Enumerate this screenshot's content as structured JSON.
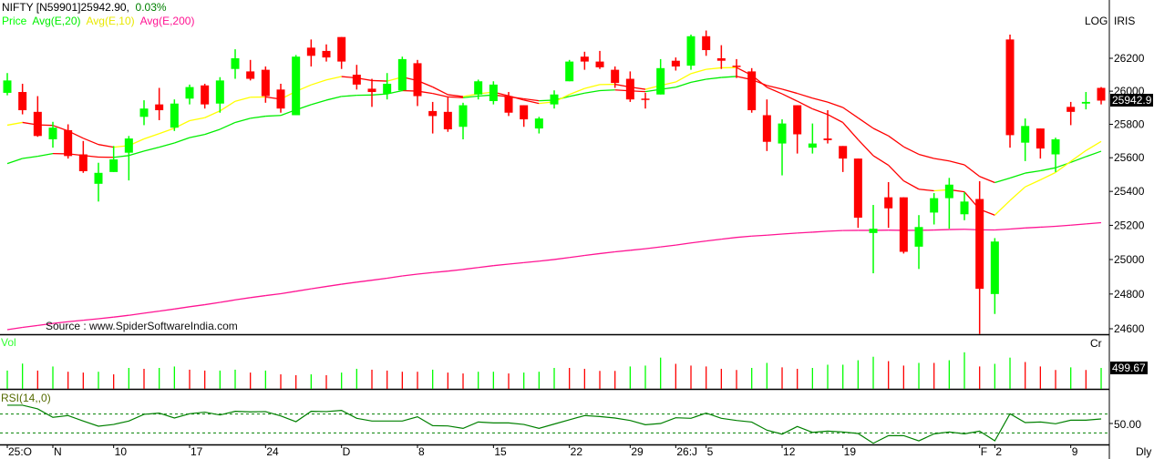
{
  "header": {
    "symbol": "NIFTY [N59901]",
    "price": "25942.90,",
    "change": "0.03%"
  },
  "legend": {
    "price": "Price",
    "ema20": "Avg(E,20)",
    "ema10": "Avg(E,10)",
    "ema200": "Avg(E,200)"
  },
  "top_right": {
    "log": "LOG",
    "iris": "IRIS"
  },
  "source": "Source : www.SpiderSoftwareIndia.com",
  "volume_panel": {
    "title": "Vol",
    "unit": "Cr",
    "last_label": "499.67"
  },
  "rsi_panel": {
    "title": "RSI(14,,0)",
    "mid_label": "50.00"
  },
  "period": "Dly",
  "last_price_label": "25942.9",
  "colors": {
    "up": "#00ff00",
    "down": "#ff0000",
    "ema20_up": "#00ee00",
    "ema10_up": "#ffff00",
    "ema_down": "#ff0000",
    "ema200": "#ff1493",
    "rsi": "#008000",
    "change": "#008000"
  },
  "chart_data": {
    "type": "candlestick",
    "scale": "log",
    "ylim": [
      24560,
      26380
    ],
    "y_ticks": [
      "26200",
      "26000",
      "25800",
      "25600",
      "25400",
      "25200",
      "25000",
      "24800",
      "24600"
    ],
    "x_ticks": [
      {
        "label": "25:O",
        "index": 0
      },
      {
        "label": "N",
        "index": 3
      },
      {
        "label": "10",
        "index": 7
      },
      {
        "label": "17",
        "index": 12
      },
      {
        "label": "24",
        "index": 17
      },
      {
        "label": "D",
        "index": 22
      },
      {
        "label": "8",
        "index": 27
      },
      {
        "label": "15",
        "index": 32
      },
      {
        "label": "22",
        "index": 37
      },
      {
        "label": "29",
        "index": 41
      },
      {
        "label": "26:J",
        "index": 44
      },
      {
        "label": "5",
        "index": 46
      },
      {
        "label": "12",
        "index": 51
      },
      {
        "label": "19",
        "index": 55
      },
      {
        "label": "F",
        "index": 64
      },
      {
        "label": "2",
        "index": 65
      },
      {
        "label": "9",
        "index": 70
      }
    ],
    "ohlc": [
      [
        25990,
        26110,
        25975,
        26065
      ],
      [
        25995,
        26045,
        25860,
        25885
      ],
      [
        25875,
        25970,
        25725,
        25730
      ],
      [
        25710,
        25815,
        25660,
        25780
      ],
      [
        25765,
        25800,
        25595,
        25610
      ],
      [
        25620,
        25700,
        25510,
        25520
      ],
      [
        25445,
        25570,
        25340,
        25510
      ],
      [
        25515,
        25670,
        25515,
        25590
      ],
      [
        25630,
        25730,
        25465,
        25715
      ],
      [
        25845,
        25945,
        25795,
        25895
      ],
      [
        25920,
        26020,
        25825,
        25885
      ],
      [
        25780,
        25950,
        25760,
        25925
      ],
      [
        25955,
        26040,
        25920,
        26025
      ],
      [
        26035,
        26045,
        25895,
        25920
      ],
      [
        25925,
        26085,
        25870,
        26065
      ],
      [
        26135,
        26255,
        26075,
        26200
      ],
      [
        26120,
        26190,
        26065,
        26075
      ],
      [
        26130,
        26150,
        25930,
        25970
      ],
      [
        26010,
        26045,
        25870,
        25895
      ],
      [
        25855,
        26220,
        25855,
        26210
      ],
      [
        26265,
        26315,
        26150,
        26215
      ],
      [
        26245,
        26285,
        26180,
        26205
      ],
      [
        26330,
        26330,
        26135,
        26180
      ],
      [
        26100,
        26160,
        26010,
        26040
      ],
      [
        26015,
        26075,
        25905,
        25995
      ],
      [
        25985,
        26110,
        25950,
        26045
      ],
      [
        26005,
        26210,
        26000,
        26195
      ],
      [
        26170,
        26190,
        25910,
        25970
      ],
      [
        25880,
        25935,
        25745,
        25850
      ],
      [
        25875,
        25965,
        25755,
        25770
      ],
      [
        25785,
        25930,
        25710,
        25915
      ],
      [
        25980,
        26070,
        25950,
        26060
      ],
      [
        25940,
        26060,
        25920,
        26040
      ],
      [
        25970,
        25995,
        25850,
        25870
      ],
      [
        25915,
        25915,
        25785,
        25830
      ],
      [
        25775,
        25845,
        25745,
        25835
      ],
      [
        25920,
        26005,
        25895,
        25980
      ],
      [
        26060,
        26190,
        26060,
        26180
      ],
      [
        26210,
        26240,
        26130,
        26180
      ],
      [
        26180,
        26245,
        26135,
        26145
      ],
      [
        26130,
        26150,
        26020,
        26050
      ],
      [
        26075,
        26120,
        25935,
        25950
      ],
      [
        25955,
        25990,
        25895,
        25950
      ],
      [
        25980,
        26195,
        25980,
        26140
      ],
      [
        26185,
        26205,
        26125,
        26150
      ],
      [
        26155,
        26345,
        26130,
        26335
      ],
      [
        26335,
        26370,
        26215,
        26250
      ],
      [
        26200,
        26280,
        26135,
        26185
      ],
      [
        26155,
        26195,
        26080,
        26150
      ],
      [
        26120,
        26140,
        25870,
        25885
      ],
      [
        25855,
        25950,
        25640,
        25695
      ],
      [
        25685,
        25830,
        25495,
        25805
      ],
      [
        25915,
        25915,
        25625,
        25740
      ],
      [
        25660,
        25805,
        25625,
        25685
      ],
      [
        25715,
        25885,
        25685,
        25705
      ],
      [
        25670,
        25670,
        25515,
        25595
      ],
      [
        25595,
        25595,
        25185,
        25245
      ],
      [
        25155,
        25320,
        24920,
        25180
      ],
      [
        25365,
        25455,
        25185,
        25300
      ],
      [
        25365,
        25365,
        25035,
        25045
      ],
      [
        25075,
        25260,
        24945,
        25190
      ],
      [
        25275,
        25390,
        25205,
        25360
      ],
      [
        25360,
        25480,
        25180,
        25440
      ],
      [
        25265,
        25395,
        25230,
        25340
      ],
      [
        25355,
        25460,
        24570,
        24830
      ],
      [
        24800,
        25125,
        24685,
        25105
      ],
      [
        26315,
        26345,
        25660,
        25735
      ],
      [
        25690,
        25835,
        25580,
        25790
      ],
      [
        25775,
        25775,
        25595,
        25655
      ],
      [
        25620,
        25720,
        25515,
        25710
      ],
      [
        25905,
        25935,
        25795,
        25875
      ],
      [
        25925,
        25995,
        25890,
        25935
      ],
      [
        26020,
        26025,
        25920,
        25942.9
      ]
    ],
    "ema_start": {
      "ema10": 25795,
      "ema20": 25565,
      "ema200": 24595
    },
    "volume": [
      437,
      604,
      437,
      534,
      409,
      389,
      409,
      347,
      500,
      479,
      500,
      534,
      458,
      437,
      437,
      458,
      389,
      437,
      347,
      326,
      347,
      326,
      389,
      479,
      458,
      437,
      409,
      409,
      458,
      389,
      368,
      409,
      409,
      368,
      389,
      409,
      500,
      500,
      479,
      429,
      429,
      535,
      556,
      746,
      598,
      556,
      535,
      479,
      451,
      500,
      620,
      514,
      479,
      500,
      577,
      577,
      683,
      767,
      662,
      556,
      620,
      620,
      683,
      873,
      535,
      598,
      746,
      641,
      535,
      451,
      514,
      451,
      499.67
    ],
    "volume_up": "GGRGRRGRGRGGRRGGRGRRGRGGRRRRGRRGGRGGGRRRRGGGRRRRRGGRRGGGGGRRGRGGRGGRRRGRG",
    "rsi": [
      69.4,
      69.4,
      65.5,
      56.5,
      58.4,
      52.6,
      47.1,
      49,
      52.6,
      59.7,
      61,
      55.8,
      60.3,
      62,
      59,
      62.9,
      62.3,
      62.6,
      58,
      51.9,
      62.9,
      62.6,
      63.9,
      55.5,
      52.6,
      52.6,
      52.6,
      57.1,
      47.7,
      47.4,
      44.8,
      51.6,
      50.6,
      50.6,
      49,
      44.8,
      49.4,
      53.9,
      58.4,
      57.4,
      55.8,
      53.2,
      48.7,
      50,
      56.1,
      55.5,
      61,
      55.5,
      53.2,
      51.5,
      42.9,
      38.7,
      46.8,
      40.6,
      41.9,
      41,
      39.4,
      29,
      37.1,
      37.1,
      31.6,
      39,
      41,
      39,
      41.9,
      31.6,
      60.3,
      51,
      51.6,
      49.7,
      53.5,
      53.5,
      54.8
    ],
    "rsi_bands": [
      60,
      40
    ]
  }
}
